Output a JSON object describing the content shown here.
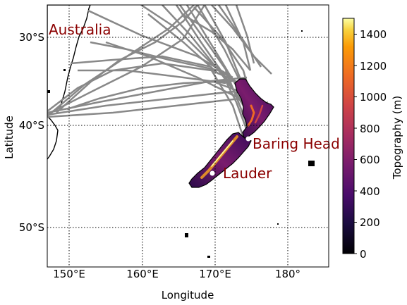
{
  "map": {
    "xlabel": "Longitude",
    "ylabel": "Latitude",
    "x_ticks": [
      "150°E",
      "160°E",
      "170°E",
      "180°"
    ],
    "y_ticks": [
      "30°S",
      "40°S",
      "50°S"
    ],
    "labels": {
      "australia": "Australia",
      "baring_head": "Baring Head",
      "lauder": "Lauder"
    },
    "track_color": "#888888",
    "land_edge_color": "#000000"
  },
  "colorbar": {
    "label": "Topography (m)",
    "ticks": [
      "0",
      "200",
      "400",
      "600",
      "800",
      "1000",
      "1200",
      "1400"
    ],
    "min": 0,
    "max": 1500,
    "colormap": "inferno"
  }
}
